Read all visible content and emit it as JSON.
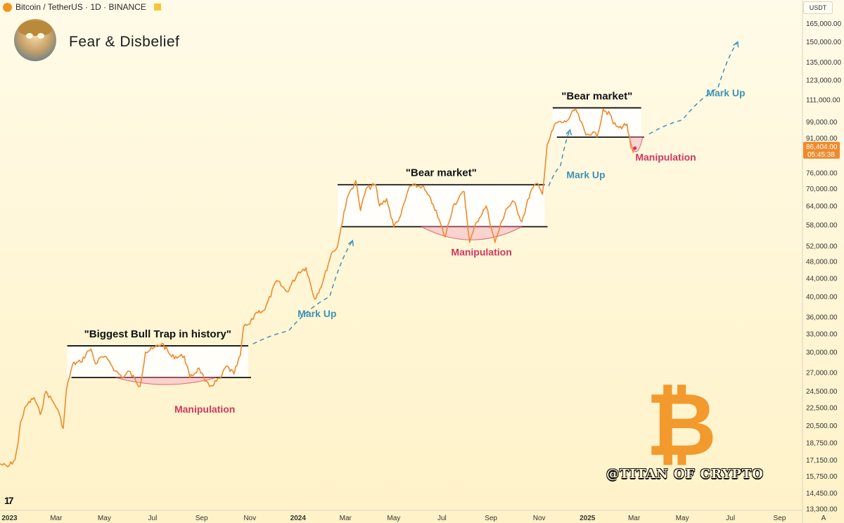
{
  "header": {
    "symbol": "Bitcoin / TetherUS · 1D · BINANCE",
    "currency": "USDT"
  },
  "tagline": "Fear & Disbelief",
  "watermark": "@TITAN OF CRYPTO",
  "watermark_logo": "₿",
  "tradingview_logo": "17",
  "auto_scale_label": "A",
  "icons": [
    "bitcoin-symbol-icon",
    "flag-icon",
    "avatar-image",
    "bitcoin-logo-icon",
    "tradingview-logo-icon"
  ],
  "colors": {
    "price_line": "#ef8a2c",
    "range_line": "#111111",
    "manipulation": "#d0375e",
    "markup": "#3d93b8",
    "price_badge": "#ef8a2c"
  },
  "chart_data": {
    "type": "line",
    "symbol": "BTCUSDT",
    "interval": "1D",
    "y_scale": "log",
    "ylim": [
      13300,
      172000
    ],
    "xlim": [
      "2022-12-20",
      "2025-09-30"
    ],
    "y_ticks": [
      165000,
      150000,
      135000,
      123000,
      111000,
      99000,
      91000,
      76000,
      70000,
      64000,
      58000,
      52000,
      48000,
      44000,
      40000,
      36000,
      33000,
      30000,
      27000,
      24500,
      22500,
      20500,
      18750,
      17150,
      15750,
      14450,
      13300
    ],
    "x_ticks": [
      {
        "date": "2023-01-01",
        "label": "2023",
        "bold": true
      },
      {
        "date": "2023-03-01",
        "label": "Mar"
      },
      {
        "date": "2023-05-01",
        "label": "May"
      },
      {
        "date": "2023-07-01",
        "label": "Jul"
      },
      {
        "date": "2023-09-01",
        "label": "Sep"
      },
      {
        "date": "2023-11-01",
        "label": "Nov"
      },
      {
        "date": "2024-01-01",
        "label": "2024",
        "bold": true
      },
      {
        "date": "2024-03-01",
        "label": "Mar"
      },
      {
        "date": "2024-05-01",
        "label": "May"
      },
      {
        "date": "2024-07-01",
        "label": "Jul"
      },
      {
        "date": "2024-09-01",
        "label": "Sep"
      },
      {
        "date": "2024-11-01",
        "label": "Nov"
      },
      {
        "date": "2025-01-01",
        "label": "2025",
        "bold": true
      },
      {
        "date": "2025-03-01",
        "label": "Mar"
      },
      {
        "date": "2025-05-01",
        "label": "May"
      },
      {
        "date": "2025-07-01",
        "label": "Jul"
      },
      {
        "date": "2025-09-01",
        "label": "Sep"
      }
    ],
    "last_price": {
      "value": 86404.0,
      "label": "86,404.00",
      "countdown": "05:45:38"
    },
    "series": [
      {
        "points": [
          [
            "2022-12-20",
            16800
          ],
          [
            "2022-12-30",
            16550
          ],
          [
            "2023-01-08",
            17200
          ],
          [
            "2023-01-12",
            18800
          ],
          [
            "2023-01-15",
            20900
          ],
          [
            "2023-01-22",
            22700
          ],
          [
            "2023-02-01",
            23700
          ],
          [
            "2023-02-09",
            21700
          ],
          [
            "2023-02-16",
            24500
          ],
          [
            "2023-02-25",
            23200
          ],
          [
            "2023-03-03",
            22300
          ],
          [
            "2023-03-10",
            20200
          ],
          [
            "2023-03-14",
            24700
          ],
          [
            "2023-03-22",
            28200
          ],
          [
            "2023-04-01",
            28500
          ],
          [
            "2023-04-11",
            30200
          ],
          [
            "2023-04-14",
            30500
          ],
          [
            "2023-04-20",
            28200
          ],
          [
            "2023-04-28",
            29300
          ],
          [
            "2023-05-07",
            28700
          ],
          [
            "2023-05-15",
            27200
          ],
          [
            "2023-05-25",
            26300
          ],
          [
            "2023-06-01",
            27200
          ],
          [
            "2023-06-10",
            25800
          ],
          [
            "2023-06-15",
            25100
          ],
          [
            "2023-06-22",
            30000
          ],
          [
            "2023-07-01",
            30500
          ],
          [
            "2023-07-13",
            31400
          ],
          [
            "2023-07-25",
            29300
          ],
          [
            "2023-08-10",
            29400
          ],
          [
            "2023-08-17",
            26300
          ],
          [
            "2023-08-29",
            27600
          ],
          [
            "2023-09-05",
            25800
          ],
          [
            "2023-09-11",
            25100
          ],
          [
            "2023-09-25",
            26200
          ],
          [
            "2023-10-02",
            27900
          ],
          [
            "2023-10-12",
            26800
          ],
          [
            "2023-10-20",
            29500
          ],
          [
            "2023-10-24",
            34200
          ],
          [
            "2023-11-01",
            34700
          ],
          [
            "2023-11-09",
            36900
          ],
          [
            "2023-11-20",
            37400
          ],
          [
            "2023-12-05",
            43500
          ],
          [
            "2023-12-18",
            41000
          ],
          [
            "2024-01-02",
            45500
          ],
          [
            "2024-01-11",
            46500
          ],
          [
            "2024-01-22",
            39500
          ],
          [
            "2024-02-01",
            43000
          ],
          [
            "2024-02-12",
            50000
          ],
          [
            "2024-02-20",
            52000
          ],
          [
            "2024-02-28",
            62000
          ],
          [
            "2024-03-05",
            68000
          ],
          [
            "2024-03-14",
            73000
          ],
          [
            "2024-03-20",
            62500
          ],
          [
            "2024-03-27",
            70000
          ],
          [
            "2024-04-08",
            71500
          ],
          [
            "2024-04-13",
            64000
          ],
          [
            "2024-04-22",
            66500
          ],
          [
            "2024-05-01",
            57500
          ],
          [
            "2024-05-10",
            61000
          ],
          [
            "2024-05-21",
            71000
          ],
          [
            "2024-06-06",
            71000
          ],
          [
            "2024-06-20",
            64500
          ],
          [
            "2024-07-05",
            54500
          ],
          [
            "2024-07-15",
            64000
          ],
          [
            "2024-07-29",
            69000
          ],
          [
            "2024-08-05",
            53000
          ],
          [
            "2024-08-14",
            59000
          ],
          [
            "2024-08-26",
            64000
          ],
          [
            "2024-09-06",
            53000
          ],
          [
            "2024-09-20",
            63000
          ],
          [
            "2024-09-30",
            65500
          ],
          [
            "2024-10-10",
            59000
          ],
          [
            "2024-10-21",
            69000
          ],
          [
            "2024-10-29",
            72000
          ],
          [
            "2024-11-05",
            68000
          ],
          [
            "2024-11-11",
            88000
          ],
          [
            "2024-11-22",
            98500
          ],
          [
            "2024-12-05",
            99000
          ],
          [
            "2024-12-17",
            106000
          ],
          [
            "2024-12-30",
            92500
          ],
          [
            "2025-01-08",
            94000
          ],
          [
            "2025-01-13",
            91500
          ],
          [
            "2025-01-21",
            106000
          ],
          [
            "2025-01-31",
            102000
          ],
          [
            "2025-02-03",
            98000
          ],
          [
            "2025-02-10",
            96000
          ],
          [
            "2025-02-20",
            98000
          ],
          [
            "2025-02-25",
            86500
          ],
          [
            "2025-02-28",
            84500
          ],
          [
            "2025-03-02",
            86404
          ]
        ]
      }
    ],
    "ranges": [
      {
        "label": "\"Biggest Bull Trap in history\"",
        "top": 31000,
        "bottom": 26300,
        "x_start": "2023-03-15",
        "x_end": "2023-10-30"
      },
      {
        "label": "\"Bear market\"",
        "top": 71500,
        "bottom": 57500,
        "x_start": "2024-02-20",
        "x_end": "2024-11-08"
      },
      {
        "label": "\"Bear market\"",
        "top": 106500,
        "bottom": 91500,
        "x_start": "2024-11-18",
        "x_end": "2025-03-10"
      }
    ],
    "annotations": [
      {
        "text": "Manipulation",
        "kind": "manipulation",
        "x": "2023-09-05",
        "y": 21900,
        "arc": {
          "x_start": "2023-05-15",
          "x_end": "2023-09-20",
          "top": 26300,
          "depth": 25300
        }
      },
      {
        "text": "Manipulation",
        "kind": "manipulation",
        "x": "2024-08-20",
        "y": 49500,
        "arc": {
          "x_start": "2024-06-05",
          "x_end": "2024-10-10",
          "top": 57500,
          "depth": 53500
        }
      },
      {
        "text": "Manipulation",
        "kind": "manipulation",
        "x": "2025-04-10",
        "y": 81000,
        "arc": {
          "x_start": "2025-02-23",
          "x_end": "2025-03-12",
          "top": 91500,
          "depth": 84500
        }
      },
      {
        "text": "Mark Up",
        "kind": "markup",
        "x": "2024-01-25",
        "y": 36000,
        "arrow": [
          [
            "2023-11-05",
            31300
          ],
          [
            "2023-12-20",
            33500
          ],
          [
            "2024-02-10",
            40000
          ],
          [
            "2024-03-10",
            53500
          ]
        ]
      },
      {
        "text": "Mark Up",
        "kind": "markup",
        "x": "2024-12-30",
        "y": 74000,
        "arrow": [
          [
            "2024-11-13",
            71000
          ],
          [
            "2024-11-28",
            79000
          ],
          [
            "2024-12-10",
            95000
          ]
        ]
      },
      {
        "text": "Mark Up",
        "kind": "markup",
        "x": "2025-06-25",
        "y": 113000,
        "arrow": [
          [
            "2025-03-20",
            93000
          ],
          [
            "2025-05-01",
            100000
          ],
          [
            "2025-06-15",
            118000
          ],
          [
            "2025-07-10",
            150000
          ]
        ]
      }
    ]
  }
}
